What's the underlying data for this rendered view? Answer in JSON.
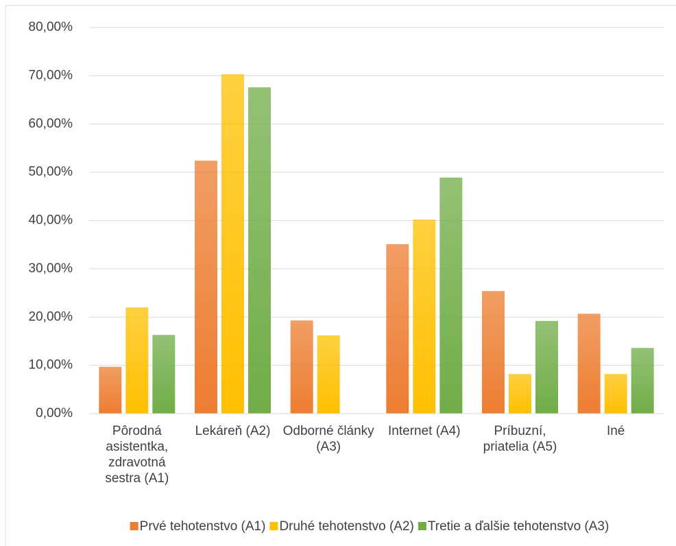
{
  "chart_data": {
    "type": "bar",
    "categories": [
      "Pôrodná asistentka, zdravotná sestra (A1)",
      "Lekáreň (A2)",
      "Odborné články (A3)",
      "Internet (A4)",
      "Príbuzní, priatelia (A5)",
      "Iné"
    ],
    "series": [
      {
        "name": "Prvé tehotenstvo (A1)",
        "color": "#ED7D31",
        "values": [
          9.7,
          52.4,
          19.3,
          35.1,
          25.4,
          20.7
        ]
      },
      {
        "name": "Druhé tehotenstvo (A2)",
        "color": "#FFC000",
        "values": [
          22.0,
          70.3,
          16.2,
          40.2,
          8.2,
          8.2
        ]
      },
      {
        "name": "Tretie a ďalšie tehotenstvo (A3)",
        "color": "#70AD47",
        "values": [
          16.3,
          67.6,
          0,
          48.9,
          19.2,
          13.6
        ]
      }
    ],
    "ylim": [
      0,
      80
    ],
    "yticks": [
      {
        "value": 0,
        "label": "0,00%"
      },
      {
        "value": 10,
        "label": "10,00%"
      },
      {
        "value": 20,
        "label": "20,00%"
      },
      {
        "value": 30,
        "label": "30,00%"
      },
      {
        "value": 40,
        "label": "40,00%"
      },
      {
        "value": 50,
        "label": "50,00%"
      },
      {
        "value": 60,
        "label": "60,00%"
      },
      {
        "value": 70,
        "label": "70,00%"
      },
      {
        "value": 80,
        "label": "80,00%"
      }
    ],
    "grid": true,
    "legend": "bottom"
  }
}
